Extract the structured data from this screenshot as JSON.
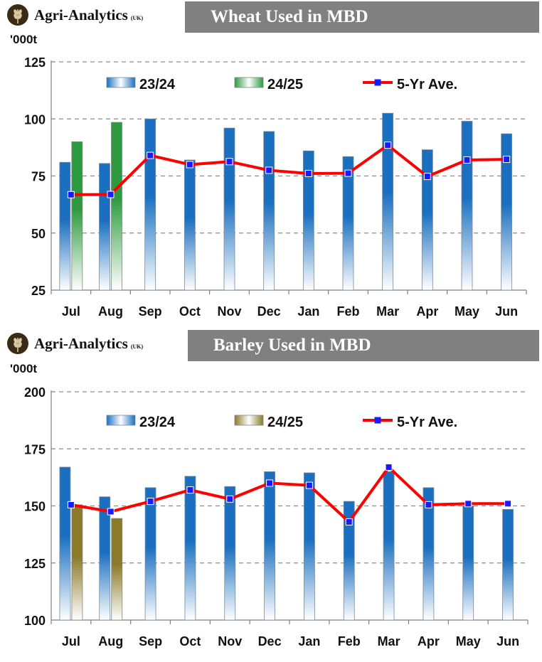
{
  "brand": {
    "name": "Agri-Analytics",
    "suffix": "(UK)"
  },
  "colors": {
    "bar_2324": "#1a6fc0",
    "bar_2425_wheat": "#2e9a3f",
    "bar_2425_barley": "#8b7a2a",
    "avg_line": "#ff0000",
    "avg_marker": "#1a1aff",
    "banner": "#808080"
  },
  "chart_data": [
    {
      "type": "bar",
      "title": "Wheat Used in MBD",
      "ylabel": "'000t",
      "ylim": [
        25,
        125
      ],
      "yticks": [
        25,
        50,
        75,
        100,
        125
      ],
      "grid": true,
      "legend_position": "top",
      "categories": [
        "Jul",
        "Aug",
        "Sep",
        "Oct",
        "Nov",
        "Dec",
        "Jan",
        "Feb",
        "Mar",
        "Apr",
        "May",
        "Jun"
      ],
      "series": [
        {
          "name": "23/24",
          "kind": "bar",
          "values": [
            81,
            80.5,
            100,
            82,
            96,
            94.5,
            86,
            83.5,
            102.5,
            86.5,
            99,
            93.5
          ]
        },
        {
          "name": "24/25",
          "kind": "bar",
          "values": [
            90,
            98.5,
            null,
            null,
            null,
            null,
            null,
            null,
            null,
            null,
            null,
            null
          ]
        },
        {
          "name": "5-Yr Ave.",
          "kind": "line",
          "values": [
            66.8,
            66.9,
            84,
            80,
            81.3,
            77.5,
            76.1,
            76.2,
            88.5,
            74.8,
            82,
            82.3
          ]
        }
      ]
    },
    {
      "type": "bar",
      "title": "Barley Used in MBD",
      "ylabel": "'000t",
      "ylim": [
        100,
        200
      ],
      "yticks": [
        100,
        125,
        150,
        175,
        200
      ],
      "grid": true,
      "legend_position": "top",
      "categories": [
        "Jul",
        "Aug",
        "Sep",
        "Oct",
        "Nov",
        "Dec",
        "Jan",
        "Feb",
        "Mar",
        "Apr",
        "May",
        "Jun"
      ],
      "series": [
        {
          "name": "23/24",
          "kind": "bar",
          "values": [
            167,
            154,
            158,
            163,
            158.5,
            165,
            164.5,
            152,
            165,
            158,
            150,
            148.5
          ]
        },
        {
          "name": "24/25",
          "kind": "bar",
          "values": [
            150.5,
            144.5,
            null,
            null,
            null,
            null,
            null,
            null,
            null,
            null,
            null,
            null
          ]
        },
        {
          "name": "5-Yr Ave.",
          "kind": "line",
          "values": [
            150.5,
            147.5,
            152,
            157,
            153,
            160,
            159,
            143,
            167,
            150.5,
            151,
            151
          ]
        }
      ]
    }
  ]
}
